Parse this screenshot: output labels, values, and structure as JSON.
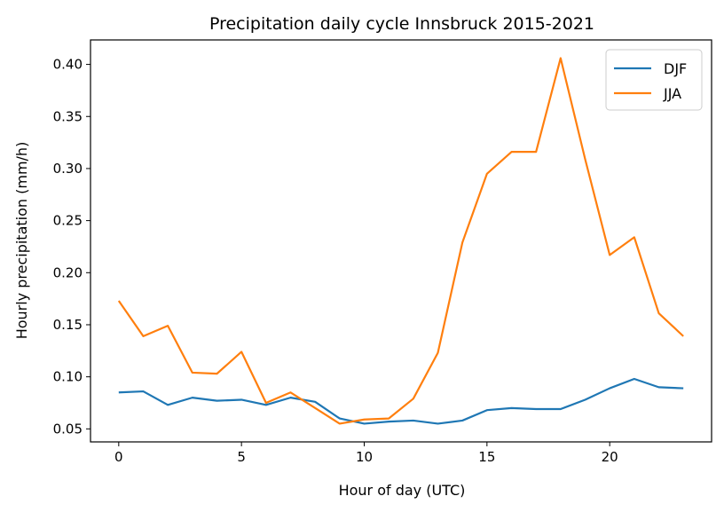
{
  "chart_data": {
    "type": "line",
    "title": "Precipitation daily cycle Innsbruck 2015-2021",
    "xlabel": "Hour of day (UTC)",
    "ylabel": "Hourly precipitation (mm/h)",
    "xlim": [
      -1.15,
      24.15
    ],
    "ylim": [
      0.0375,
      0.4235
    ],
    "xticks": [
      0,
      5,
      10,
      15,
      20
    ],
    "yticks": [
      0.05,
      0.1,
      0.15,
      0.2,
      0.25,
      0.3,
      0.35,
      0.4
    ],
    "ytick_labels": [
      "0.05",
      "0.10",
      "0.15",
      "0.20",
      "0.25",
      "0.30",
      "0.35",
      "0.40"
    ],
    "grid": false,
    "legend_position": "top-right",
    "x": [
      0,
      1,
      2,
      3,
      4,
      5,
      6,
      7,
      8,
      9,
      10,
      11,
      12,
      13,
      14,
      15,
      16,
      17,
      18,
      19,
      20,
      21,
      22,
      23
    ],
    "series": [
      {
        "name": "DJF",
        "color": "#1f77b4",
        "values": [
          0.085,
          0.086,
          0.073,
          0.08,
          0.077,
          0.078,
          0.073,
          0.08,
          0.076,
          0.06,
          0.055,
          0.057,
          0.058,
          0.055,
          0.058,
          0.068,
          0.07,
          0.069,
          0.069,
          0.078,
          0.089,
          0.098,
          0.09,
          0.089
        ]
      },
      {
        "name": "JJA",
        "color": "#ff7f0e",
        "values": [
          0.173,
          0.139,
          0.149,
          0.104,
          0.103,
          0.124,
          0.075,
          0.085,
          0.07,
          0.055,
          0.059,
          0.06,
          0.079,
          0.123,
          0.229,
          0.295,
          0.316,
          0.316,
          0.406,
          0.309,
          0.217,
          0.234,
          0.161,
          0.139
        ]
      }
    ]
  }
}
